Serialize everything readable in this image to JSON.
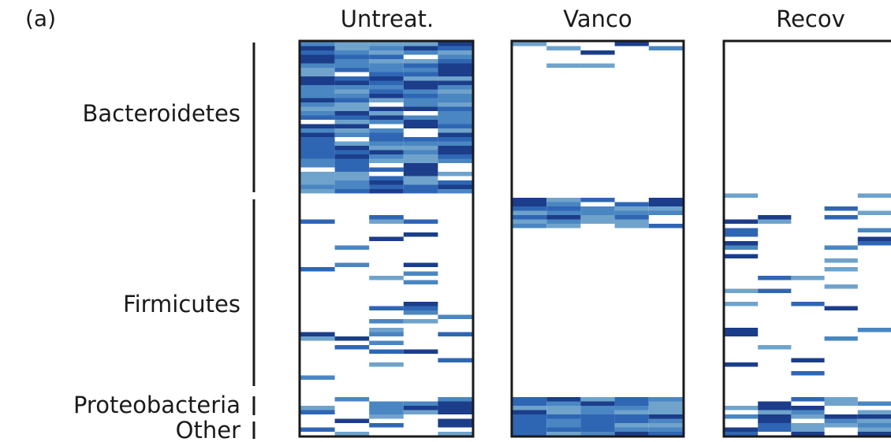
{
  "chart_data": {
    "type": "heatmap",
    "panel_label": "(a)",
    "panels": [
      "Untreat.",
      "Vanco",
      "Recov"
    ],
    "groups": [
      "Bacteroidetes",
      "Firmicutes",
      "Proteobacteria",
      "Other"
    ],
    "columns_per_panel": 5,
    "color_scale": [
      "#ffffff",
      "#6fa3cc",
      "#4a86c2",
      "#2f66b4",
      "#1b3d8a"
    ],
    "grid": false
  }
}
